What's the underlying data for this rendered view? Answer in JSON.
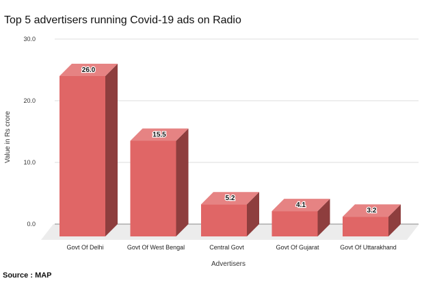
{
  "chart_data": {
    "type": "bar",
    "title": "Top 5 advertisers running Covid-19 ads on Radio",
    "xlabel": "Advertisers",
    "ylabel": "Value in Rs crore",
    "ylim": [
      0,
      30
    ],
    "yticks": [
      "0.0",
      "10.0",
      "20.0",
      "30.0"
    ],
    "categories": [
      "Govt Of Delhi",
      "Govt Of West Bengal",
      "Central Govt",
      "Govt Of Gujarat",
      "Govt Of Uttarakhand"
    ],
    "values": [
      26.0,
      15.5,
      5.2,
      4.1,
      3.2
    ],
    "data_labels": [
      "26.0",
      "15.5",
      "5.2",
      "4.1",
      "3.2"
    ],
    "grid": true,
    "style": "3d-column",
    "colors": {
      "front": "#e06666",
      "top": "#e68383",
      "side": "#8e3e3e",
      "floor": "#ececec",
      "grid": "#dddddd"
    }
  },
  "source": "Source : MAP"
}
